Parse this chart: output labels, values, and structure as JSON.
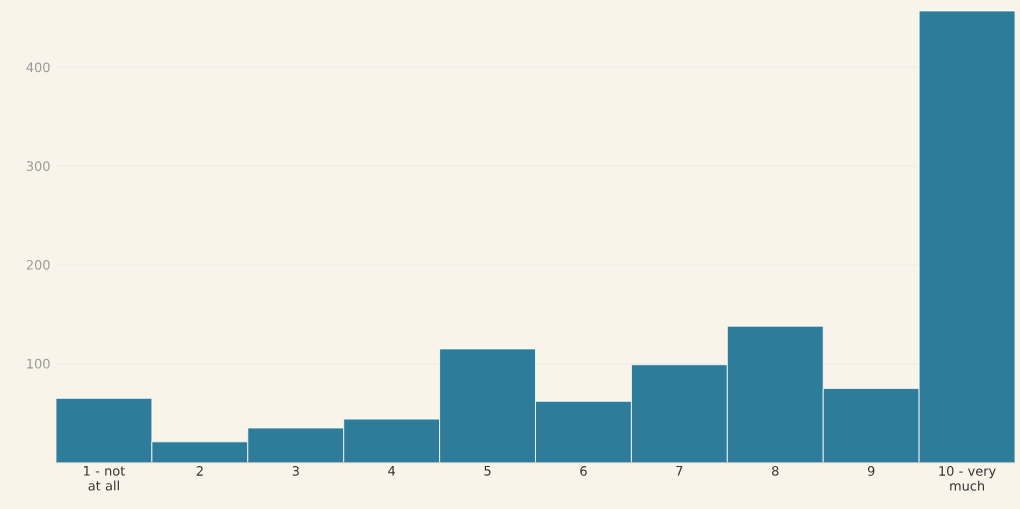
{
  "chart_data": {
    "type": "bar",
    "categories": [
      "1 - not at all",
      "2",
      "3",
      "4",
      "5",
      "6",
      "7",
      "8",
      "9",
      "10 - very much"
    ],
    "values": [
      65,
      21,
      35,
      44,
      115,
      62,
      99,
      138,
      75,
      457
    ],
    "color": "#2d7d9a",
    "ylim": [
      0,
      460
    ],
    "yticks": [
      100,
      200,
      300,
      400
    ],
    "grid": "y"
  }
}
